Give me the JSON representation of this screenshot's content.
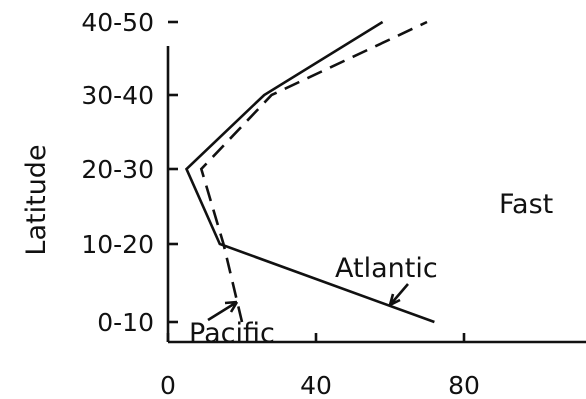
{
  "chart_data": {
    "type": "line",
    "orientation": "horizontal",
    "categories": [
      "0-10",
      "10-20",
      "20-30",
      "30-40",
      "40-50"
    ],
    "x_ticks": [
      0,
      40,
      80
    ],
    "xlim": [
      0,
      100
    ],
    "ylabel": "Latitude",
    "xlabel": "",
    "title": "",
    "side_label": "Fast",
    "grid": false,
    "series": [
      {
        "name": "Atlantic",
        "style": "solid",
        "values": [
          72,
          14,
          5,
          26,
          58
        ]
      },
      {
        "name": "Pacific",
        "style": "dashed",
        "values": [
          20,
          15,
          9,
          28,
          70
        ]
      }
    ]
  },
  "colors": {
    "ink": "#111111",
    "background": "#ffffff"
  }
}
